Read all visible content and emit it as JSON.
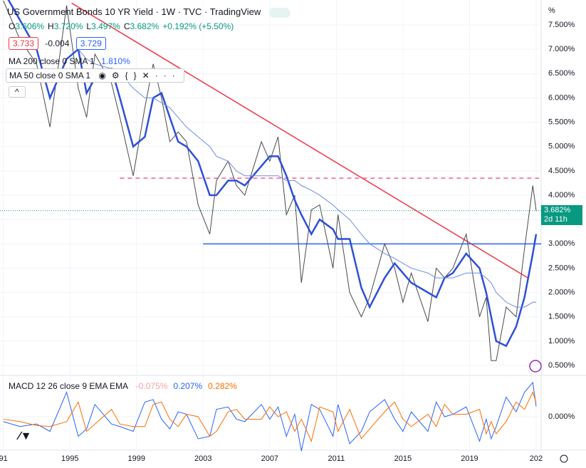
{
  "chart_data": {
    "type": "line",
    "title": "US Government Bonds 10 YR Yield · 1W · TVC · TradingView",
    "header": {
      "ohlc": [
        {
          "label": "O",
          "value": "3.606%"
        },
        {
          "label": "H",
          "value": "3.720%"
        },
        {
          "label": "L",
          "value": "3.497%"
        },
        {
          "label": "C",
          "value": "3.682%"
        }
      ],
      "change": "+0.192% (+5.50%)",
      "bid": "3.733",
      "spread": "-0.004",
      "ask": "3.729",
      "ma200_label": "MA 200 close 0 SMA 1",
      "ma200_value": "1.810%",
      "ma50_label": "MA 50 close 0 SMA 1",
      "unit": "%"
    },
    "x": [
      1991.0,
      1992.0,
      1993.0,
      1993.8,
      1994.8,
      1995.5,
      1996.0,
      1996.5,
      1997.5,
      1998.0,
      1998.8,
      1999.5,
      2000.0,
      2000.5,
      2001.0,
      2001.5,
      2002.0,
      2002.7,
      2003.4,
      2003.8,
      2004.5,
      2005.0,
      2005.5,
      2006.5,
      2007.0,
      2007.5,
      2008.0,
      2008.5,
      2008.9,
      2009.5,
      2010.0,
      2010.8,
      2011.1,
      2011.8,
      2012.5,
      2013.0,
      2013.9,
      2014.5,
      2015.0,
      2015.5,
      2016.5,
      2017.0,
      2017.5,
      2018.0,
      2018.8,
      2019.6,
      2020.0,
      2020.3,
      2020.6,
      2021.2,
      2021.8,
      2022.3,
      2022.8,
      2023.0
    ],
    "series": [
      {
        "name": "US Government Bonds 10 YR Yield",
        "color": "#4a4a4a",
        "width": 1,
        "values": [
          8.0,
          7.2,
          6.7,
          5.4,
          7.9,
          6.2,
          5.6,
          6.9,
          6.3,
          5.6,
          4.4,
          5.8,
          6.7,
          6.0,
          5.1,
          5.3,
          5.1,
          3.8,
          3.2,
          4.3,
          4.7,
          4.2,
          4.0,
          5.1,
          4.7,
          5.2,
          3.6,
          4.0,
          2.2,
          3.7,
          3.8,
          2.5,
          3.6,
          2.0,
          1.5,
          1.9,
          3.0,
          2.5,
          1.8,
          2.4,
          1.4,
          2.5,
          2.3,
          2.5,
          3.2,
          1.5,
          1.9,
          0.6,
          0.6,
          1.7,
          1.5,
          2.9,
          4.2,
          3.68
        ]
      },
      {
        "name": "MA 50",
        "color": "#2f4fd8",
        "width": 2.5,
        "values": [
          8.2,
          7.6,
          7.0,
          6.0,
          6.8,
          7.0,
          6.1,
          6.4,
          6.6,
          6.0,
          5.0,
          5.2,
          6.0,
          6.1,
          5.6,
          5.1,
          5.0,
          4.7,
          4.0,
          4.0,
          4.3,
          4.3,
          4.2,
          4.6,
          4.8,
          4.8,
          4.4,
          3.9,
          3.6,
          3.2,
          3.5,
          3.3,
          3.1,
          3.1,
          2.1,
          1.7,
          2.3,
          2.6,
          2.4,
          2.2,
          2.0,
          1.9,
          2.3,
          2.4,
          2.8,
          2.5,
          2.0,
          1.5,
          1.0,
          0.9,
          1.3,
          1.9,
          2.8,
          3.2
        ]
      },
      {
        "name": "MA 200",
        "color": "#6f8be8",
        "width": 1,
        "values": [
          null,
          null,
          null,
          null,
          null,
          7.0,
          6.8,
          6.7,
          6.6,
          6.5,
          6.2,
          6.0,
          6.0,
          5.9,
          5.8,
          5.6,
          5.4,
          5.2,
          5.0,
          4.8,
          4.7,
          4.5,
          4.4,
          4.4,
          4.4,
          4.4,
          4.3,
          4.3,
          4.2,
          4.1,
          4.0,
          3.8,
          3.7,
          3.5,
          3.2,
          3.0,
          2.8,
          2.7,
          2.6,
          2.5,
          2.4,
          2.3,
          2.3,
          2.3,
          2.4,
          2.4,
          2.3,
          2.2,
          2.0,
          1.8,
          1.7,
          1.7,
          1.8,
          1.8
        ]
      }
    ],
    "last": {
      "value": 3.682,
      "label": "3.682%",
      "countdown": "2d 11h",
      "color": "#089981"
    },
    "lines": [
      {
        "color": "#f23645",
        "dash": false,
        "x": [
          1995.1,
          2022.5
        ],
        "y": [
          7.95,
          2.3
        ]
      },
      {
        "color": "#f06292",
        "dash": true,
        "x": [
          1998.0,
          2023.3
        ],
        "y": [
          4.35,
          4.35
        ]
      },
      {
        "color": "#2962ff",
        "dash": false,
        "x": [
          2003.0,
          2023.3
        ],
        "y": [
          3.0,
          3.0
        ]
      }
    ],
    "xlim": [
      1990.8,
      2023.3
    ],
    "ylim": [
      0.3,
      8.0
    ],
    "xticks": [
      {
        "value": 1991,
        "label": "91"
      },
      1995,
      1999,
      2003,
      2007,
      2011,
      2015,
      2019,
      {
        "value": 2023,
        "label": "202"
      }
    ],
    "yticks": [
      {
        "value": 0.5,
        "label": "0.500%"
      },
      {
        "value": 1.0,
        "label": "1.000%"
      },
      {
        "value": 1.5,
        "label": "1.500%"
      },
      {
        "value": 2.0,
        "label": "2.000%"
      },
      {
        "value": 2.5,
        "label": "2.500%"
      },
      {
        "value": 3.0,
        "label": "3.000%"
      },
      {
        "value": 3.5,
        "label": "3.500%"
      },
      {
        "value": 4.0,
        "label": "4.000%"
      },
      {
        "value": 4.5,
        "label": "4.500%"
      },
      {
        "value": 5.0,
        "label": "5.000%"
      },
      {
        "value": 5.5,
        "label": "5.500%"
      },
      {
        "value": 6.0,
        "label": "6.000%"
      },
      {
        "value": 6.5,
        "label": "6.500%"
      },
      {
        "value": 7.0,
        "label": "7.000%"
      },
      {
        "value": 7.5,
        "label": "7.500%"
      }
    ],
    "macd": {
      "label": "MACD 12 26 close 9 EMA EMA",
      "readings": [
        {
          "text": "-0.075%",
          "color": "#f7a1a8"
        },
        {
          "text": "0.207%",
          "color": "#2962ff"
        },
        {
          "text": "0.282%",
          "color": "#ff6d00"
        }
      ],
      "ylim": [
        -0.8,
        0.8
      ],
      "yticks": [
        {
          "value": 0,
          "label": "0.000%"
        }
      ],
      "series": [
        {
          "name": "MACD",
          "color": "#2962ff",
          "values": [
            -0.1,
            -0.2,
            -0.15,
            -0.3,
            0.5,
            -0.4,
            -0.25,
            0.25,
            -0.15,
            -0.2,
            -0.3,
            0.3,
            0.35,
            -0.05,
            -0.25,
            0.1,
            0.05,
            -0.45,
            -0.4,
            0.15,
            0.2,
            -0.05,
            -0.1,
            0.25,
            -0.05,
            0.2,
            -0.4,
            0.05,
            -0.7,
            0.25,
            0.15,
            -0.4,
            0.25,
            -0.55,
            -0.3,
            0.1,
            0.35,
            -0.05,
            -0.3,
            0.1,
            -0.3,
            0.3,
            0.0,
            0.05,
            0.2,
            -0.5,
            -0.05,
            -0.45,
            -0.2,
            0.4,
            0.1,
            0.5,
            0.7,
            0.21
          ]
        },
        {
          "name": "Signal",
          "color": "#ff6d00",
          "values": [
            -0.05,
            -0.1,
            -0.18,
            -0.2,
            -0.1,
            0.3,
            -0.3,
            -0.15,
            0.15,
            -0.15,
            -0.2,
            -0.2,
            0.25,
            0.3,
            -0.05,
            -0.2,
            0.05,
            0.0,
            -0.4,
            -0.3,
            0.1,
            0.15,
            -0.05,
            -0.05,
            0.2,
            0.0,
            0.1,
            -0.3,
            -0.05,
            -0.5,
            0.2,
            0.1,
            -0.3,
            0.15,
            -0.45,
            -0.25,
            0.1,
            0.3,
            -0.05,
            -0.2,
            0.05,
            -0.2,
            0.25,
            0.05,
            0.05,
            0.15,
            -0.35,
            -0.1,
            -0.35,
            -0.1,
            0.3,
            0.15,
            0.5,
            0.28
          ]
        }
      ]
    }
  }
}
